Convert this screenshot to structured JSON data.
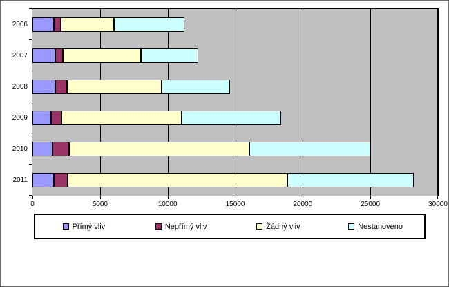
{
  "chart_data": {
    "type": "bar",
    "orientation": "horizontal-stacked",
    "title": "",
    "xlabel": "",
    "ylabel": "",
    "categories": [
      "2006",
      "2007",
      "2008",
      "2009",
      "2010",
      "2011"
    ],
    "series": [
      {
        "name": "Přímý vliv",
        "color": "#9999FF",
        "values": [
          1600,
          1700,
          1700,
          1400,
          1500,
          1600
        ]
      },
      {
        "name": "Nepřímý vliv",
        "color": "#993366",
        "values": [
          500,
          550,
          850,
          750,
          1200,
          1000
        ]
      },
      {
        "name": "Žádný vliv",
        "color": "#FFFFCC",
        "values": [
          3950,
          5750,
          7000,
          8900,
          13350,
          16250
        ]
      },
      {
        "name": "Nestanoveno",
        "color": "#CCFFFF",
        "values": [
          5200,
          4250,
          5050,
          7350,
          9000,
          9350
        ]
      }
    ],
    "xlim": [
      0,
      30000
    ],
    "x_ticks": [
      0,
      5000,
      10000,
      15000,
      20000,
      25000,
      30000
    ],
    "x_tick_labels": [
      "0",
      "5000",
      "10000",
      "15000",
      "20000",
      "25000",
      "30000"
    ],
    "grid": true,
    "legend_position": "bottom",
    "plot_bg_color": "#C0C0C0",
    "gridline_color": "#000000",
    "outer_bg_color": "#FFFFFF"
  }
}
